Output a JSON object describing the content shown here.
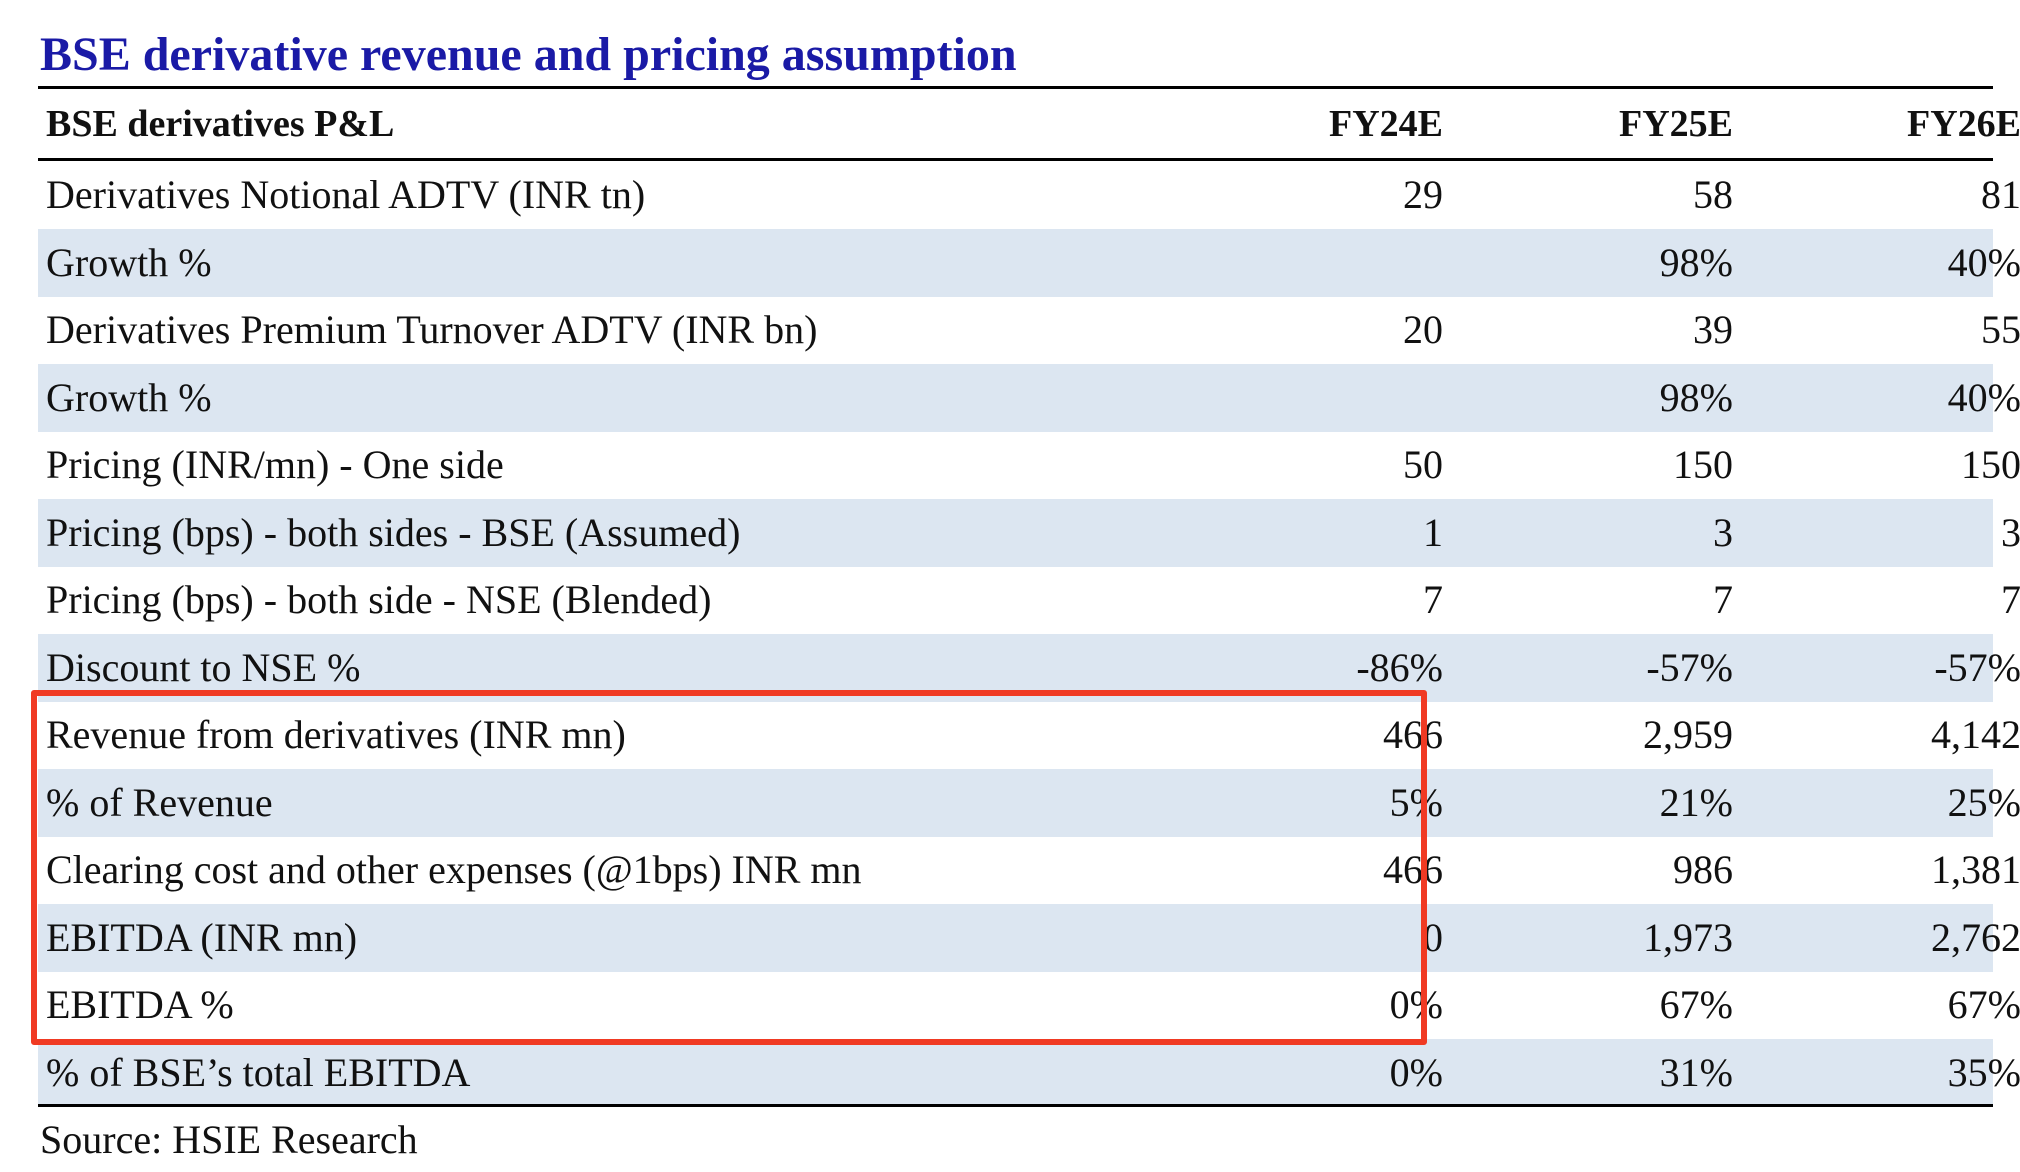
{
  "title": "BSE derivative revenue and pricing assumption",
  "table": {
    "header": {
      "label": "BSE derivatives P&L",
      "columns": [
        "FY24E",
        "FY25E",
        "FY26E"
      ]
    },
    "rows": [
      {
        "label": "Derivatives Notional ADTV (INR tn)",
        "values": [
          "29",
          "58",
          "81"
        ],
        "shaded": false
      },
      {
        "label": "Growth %",
        "values": [
          "",
          "98%",
          "40%"
        ],
        "shaded": true
      },
      {
        "label": "Derivatives Premium Turnover ADTV (INR bn)",
        "values": [
          "20",
          "39",
          "55"
        ],
        "shaded": false
      },
      {
        "label": "Growth %",
        "values": [
          "",
          "98%",
          "40%"
        ],
        "shaded": true
      },
      {
        "label": "Pricing (INR/mn) - One side",
        "values": [
          "50",
          "150",
          "150"
        ],
        "shaded": false
      },
      {
        "label": "Pricing (bps) - both sides - BSE (Assumed)",
        "values": [
          "1",
          "3",
          "3"
        ],
        "shaded": true
      },
      {
        "label": "Pricing (bps) - both side - NSE (Blended)",
        "values": [
          "7",
          "7",
          "7"
        ],
        "shaded": false
      },
      {
        "label": "Discount to NSE %",
        "values": [
          "-86%",
          "-57%",
          "-57%"
        ],
        "shaded": true
      },
      {
        "label": "Revenue from derivatives (INR mn)",
        "values": [
          "466",
          "2,959",
          "4,142"
        ],
        "shaded": false
      },
      {
        "label": "% of Revenue",
        "values": [
          "5%",
          "21%",
          "25%"
        ],
        "shaded": true
      },
      {
        "label": "Clearing cost and other expenses (@1bps) INR mn",
        "values": [
          "466",
          "986",
          "1,381"
        ],
        "shaded": false
      },
      {
        "label": "EBITDA (INR mn)",
        "values": [
          "0",
          "1,973",
          "2,762"
        ],
        "shaded": true
      },
      {
        "label": "EBITDA %",
        "values": [
          "0%",
          "67%",
          "67%"
        ],
        "shaded": false
      },
      {
        "label": "% of BSE’s total EBITDA",
        "values": [
          "0%",
          "31%",
          "35%"
        ],
        "shaded": true
      }
    ]
  },
  "source": "Source: HSIE Research",
  "colors": {
    "title": "#1a1aa6",
    "shade": "#dce6f1",
    "highlight_border": "#f03a23"
  }
}
